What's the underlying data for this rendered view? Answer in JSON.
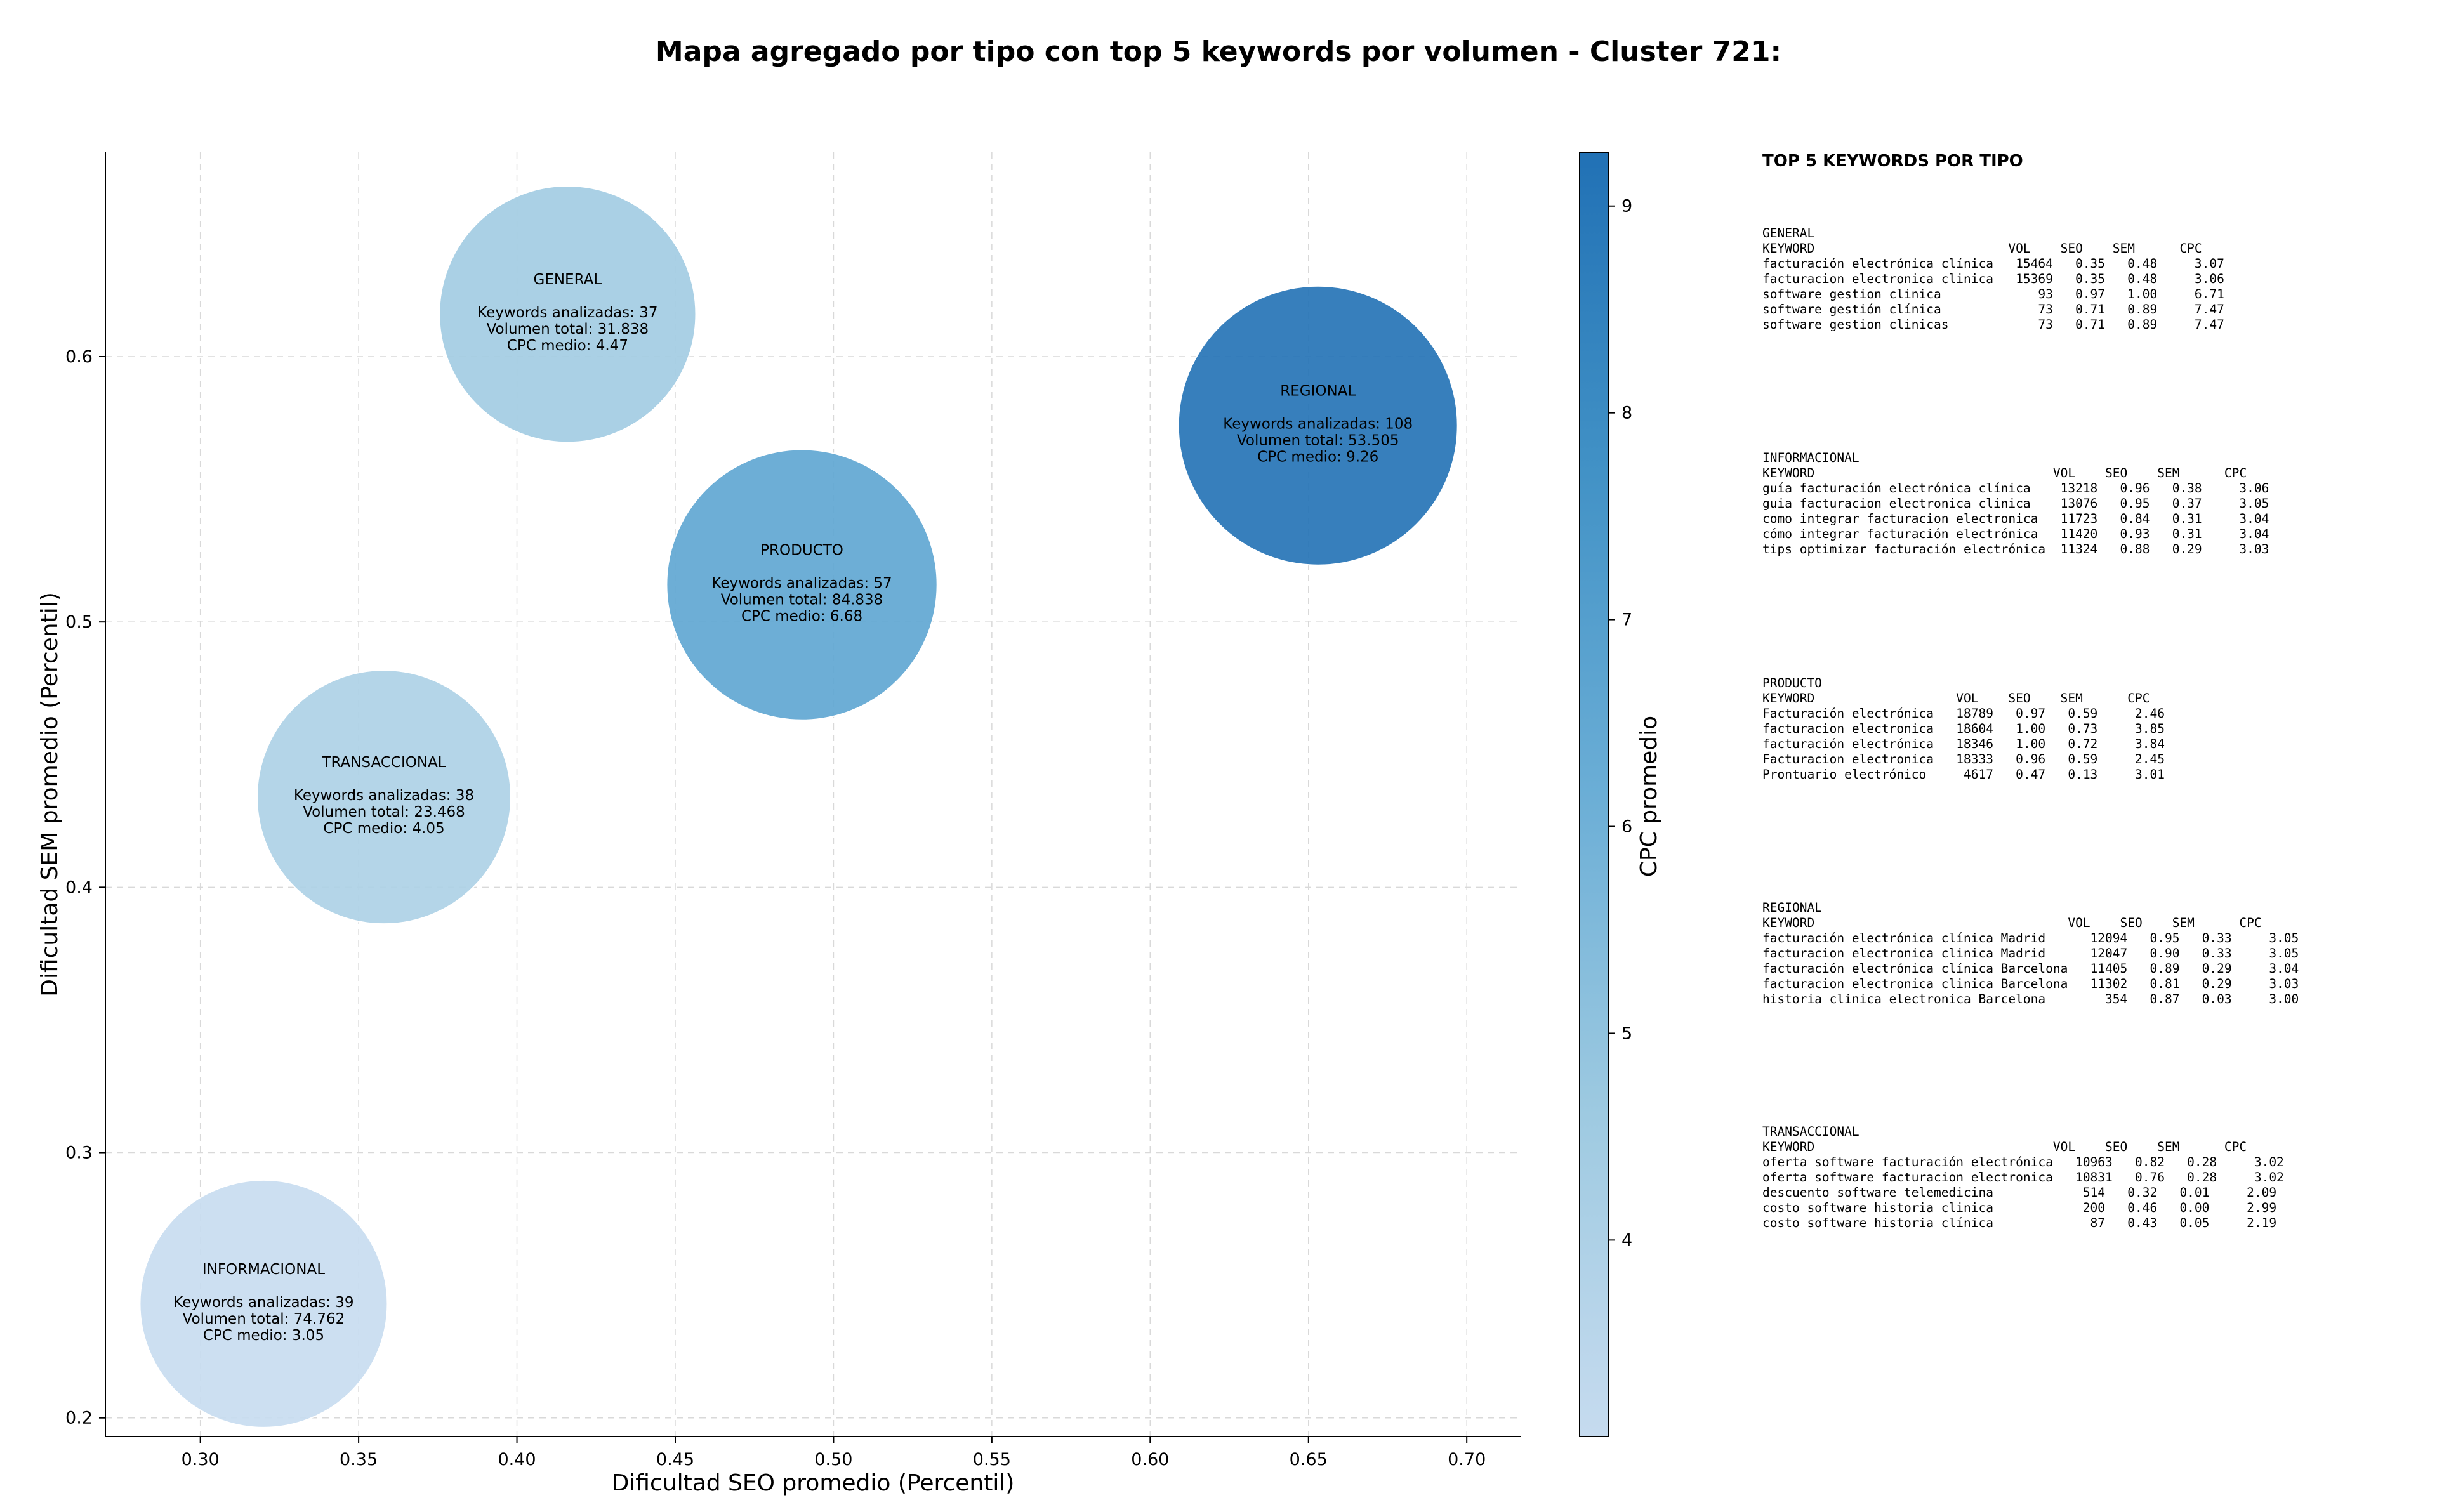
{
  "chart_data": {
    "type": "scatter",
    "title": "Mapa agregado por tipo con top 5 keywords por volumen - Cluster 721:",
    "xlabel": "Dificultad SEO promedio (Percentil)",
    "ylabel": "Dificultad SEM promedio (Percentil)",
    "colorbar_label": "CPC promedio",
    "xlim": [
      0.27,
      0.717
    ],
    "ylim": [
      0.193,
      0.677
    ],
    "xticks": [
      "0.30",
      "0.35",
      "0.40",
      "0.45",
      "0.50",
      "0.55",
      "0.60",
      "0.65",
      "0.70"
    ],
    "yticks": [
      "0.2",
      "0.3",
      "0.4",
      "0.5",
      "0.6"
    ],
    "cbar_range": [
      3.05,
      9.26
    ],
    "cbar_ticks": [
      "4",
      "5",
      "6",
      "7",
      "8",
      "9"
    ],
    "grid": true,
    "colormap": [
      "#c6dbef",
      "#9ecae1",
      "#6baed6",
      "#4292c6",
      "#2171b5"
    ],
    "points": [
      {
        "label": "GENERAL",
        "x": 0.416,
        "y": 0.616,
        "keywords": "Keywords analizadas: 37",
        "volume": "Volumen total: 31.838",
        "cpc": "CPC medio: 4.47",
        "cpc_value": 4.47,
        "volume_value": 31838
      },
      {
        "label": "INFORMACIONAL",
        "x": 0.32,
        "y": 0.243,
        "keywords": "Keywords analizadas: 39",
        "volume": "Volumen total: 74.762",
        "cpc": "CPC medio: 3.05",
        "cpc_value": 3.05,
        "volume_value": 74762
      },
      {
        "label": "PRODUCTO",
        "x": 0.49,
        "y": 0.514,
        "keywords": "Keywords analizadas: 57",
        "volume": "Volumen total: 84.838",
        "cpc": "CPC medio: 6.68",
        "cpc_value": 6.68,
        "volume_value": 84838
      },
      {
        "label": "REGIONAL",
        "x": 0.653,
        "y": 0.574,
        "keywords": "Keywords analizadas: 108",
        "volume": "Volumen total: 53.505",
        "cpc": "CPC medio: 9.26",
        "cpc_value": 9.26,
        "volume_value": 53505
      },
      {
        "label": "TRANSACCIONAL",
        "x": 0.358,
        "y": 0.434,
        "keywords": "Keywords analizadas: 38",
        "volume": "Volumen total: 23.468",
        "cpc": "CPC medio: 4.05",
        "cpc_value": 4.05,
        "volume_value": 23468
      }
    ]
  },
  "side_panel": {
    "title": "TOP 5 KEYWORDS POR TIPO",
    "groups": [
      {
        "name": "GENERAL",
        "lines": [
          "KEYWORD                          VOL    SEO    SEM      CPC",
          "facturación electrónica clínica   15464   0.35   0.48     3.07",
          "facturacion electronica clinica   15369   0.35   0.48     3.06",
          "software gestion clinica             93   0.97   1.00     6.71",
          "software gestión clínica             73   0.71   0.89     7.47",
          "software gestion clinicas            73   0.71   0.89     7.47"
        ]
      },
      {
        "name": "INFORMACIONAL",
        "lines": [
          "KEYWORD                                VOL    SEO    SEM      CPC",
          "guía facturación electrónica clínica    13218   0.96   0.38     3.06",
          "guia facturacion electronica clinica    13076   0.95   0.37     3.05",
          "como integrar facturacion electronica   11723   0.84   0.31     3.04",
          "cómo integrar facturación electrónica   11420   0.93   0.31     3.04",
          "tips optimizar facturación electrónica  11324   0.88   0.29     3.03"
        ]
      },
      {
        "name": "PRODUCTO",
        "lines": [
          "KEYWORD                   VOL    SEO    SEM      CPC",
          "Facturación electrónica   18789   0.97   0.59     2.46",
          "facturacion electronica   18604   1.00   0.73     3.85",
          "facturación electrónica   18346   1.00   0.72     3.84",
          "Facturacion electronica   18333   0.96   0.59     2.45",
          "Prontuario electrónico     4617   0.47   0.13     3.01"
        ]
      },
      {
        "name": "REGIONAL",
        "lines": [
          "KEYWORD                                  VOL    SEO    SEM      CPC",
          "facturación electrónica clínica Madrid      12094   0.95   0.33     3.05",
          "facturacion electronica clinica Madrid      12047   0.90   0.33     3.05",
          "facturación electrónica clínica Barcelona   11405   0.89   0.29     3.04",
          "facturacion electronica clinica Barcelona   11302   0.81   0.29     3.03",
          "historia clinica electronica Barcelona        354   0.87   0.03     3.00"
        ]
      },
      {
        "name": "TRANSACCIONAL",
        "lines": [
          "KEYWORD                                VOL    SEO    SEM      CPC",
          "oferta software facturación electrónica   10963   0.82   0.28     3.02",
          "oferta software facturacion electronica   10831   0.76   0.28     3.02",
          "descuento software telemedicina            514   0.32   0.01     2.09",
          "costo software historia clinica            200   0.46   0.00     2.99",
          "costo software historia clínica             87   0.43   0.05     2.19"
        ]
      }
    ]
  }
}
